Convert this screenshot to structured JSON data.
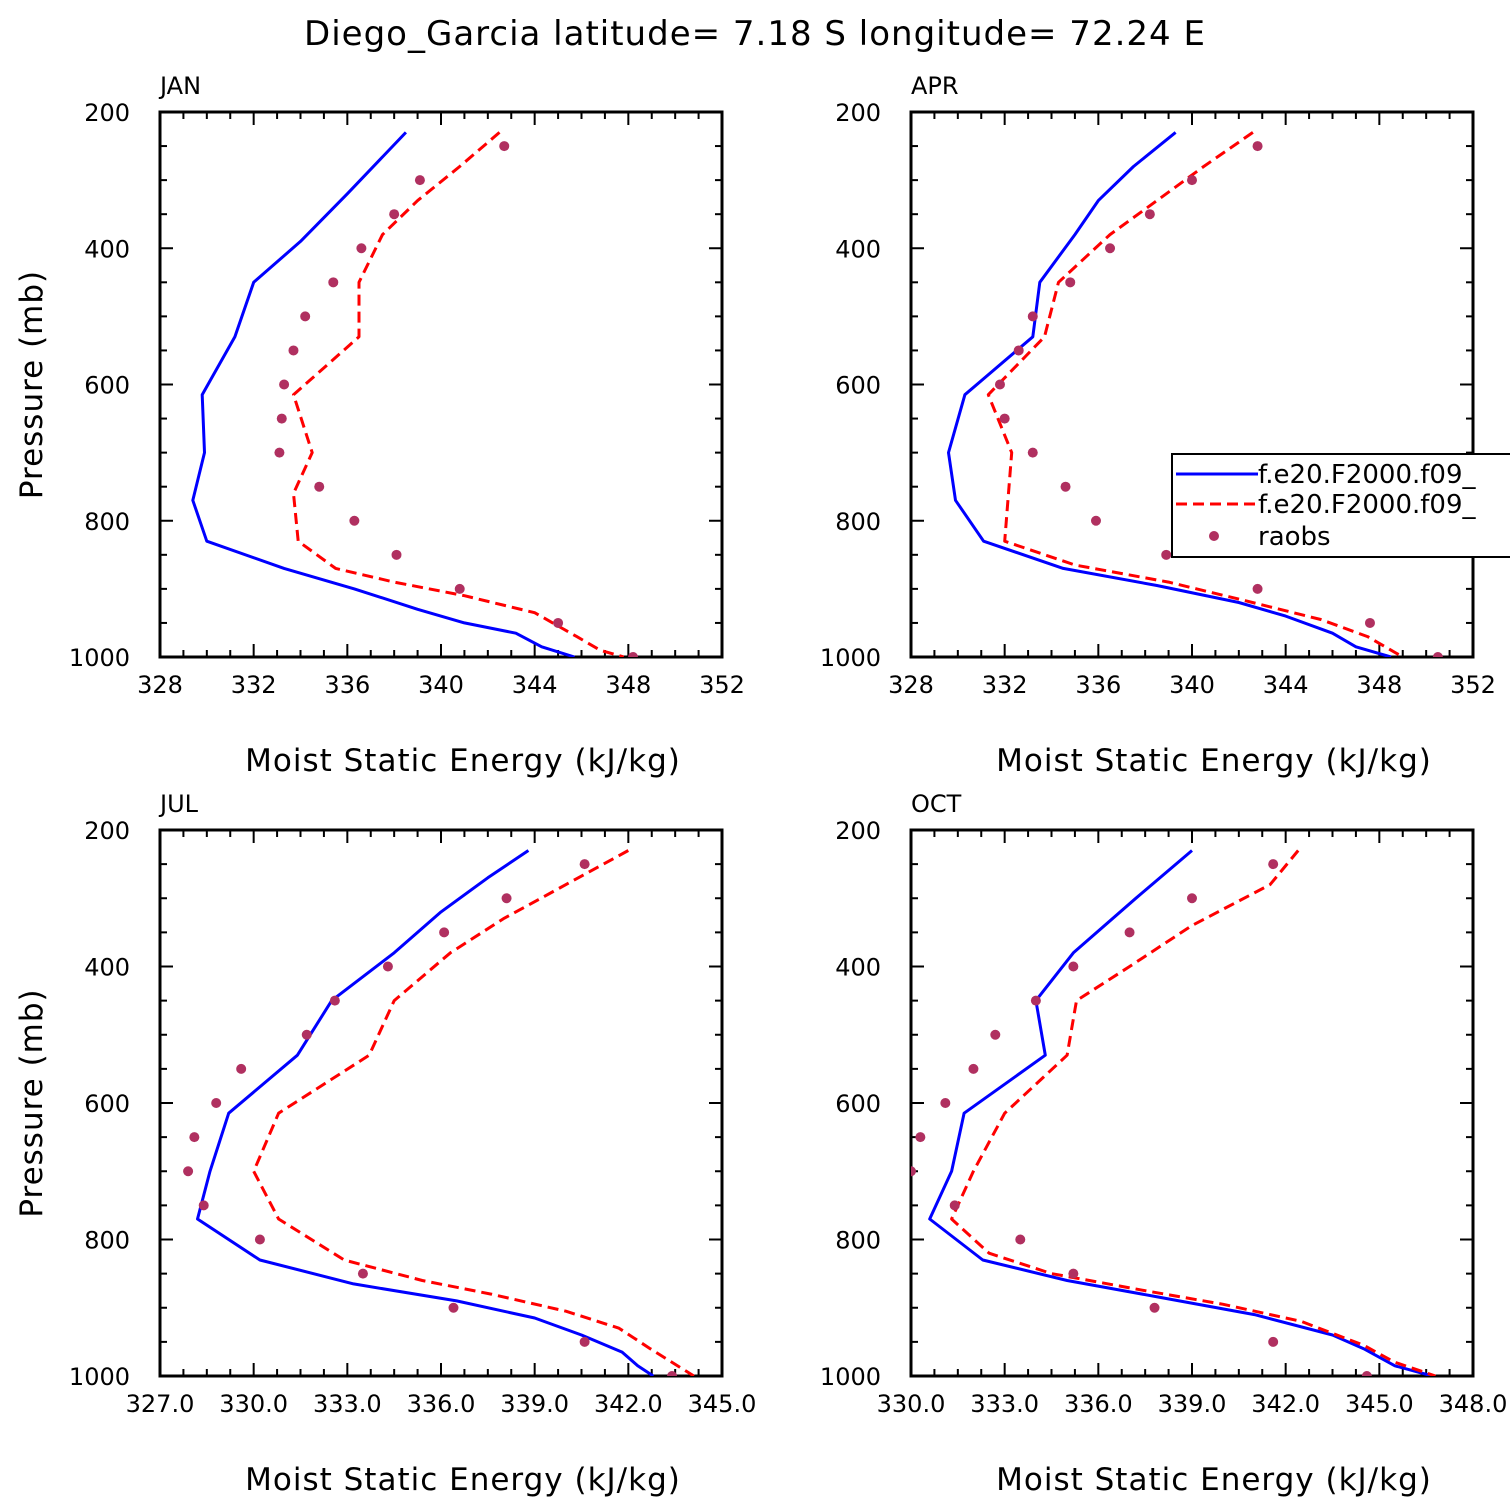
{
  "figure": {
    "title": "Diego_Garcia  latitude= 7.18 S longitude= 72.24 E"
  },
  "legend": {
    "entries": [
      {
        "label": "f.e20.F2000.f09_",
        "style": "solid",
        "color": "#0000ff"
      },
      {
        "label": "f.e20.F2000.f09_",
        "style": "dashed",
        "color": "#ff0000"
      },
      {
        "label": "raobs",
        "style": "dot",
        "color": "#b03060"
      }
    ]
  },
  "chart_data": [
    {
      "type": "line",
      "panel": "JAN",
      "xlabel": "Moist Static Energy (kJ/kg)",
      "ylabel": "Pressure (mb)",
      "xlim": [
        328,
        352
      ],
      "ylim": [
        1000,
        200
      ],
      "xticks": [
        "328",
        "332",
        "336",
        "340",
        "344",
        "348",
        "352"
      ],
      "yticks": [
        "200",
        "400",
        "600",
        "800",
        "1000"
      ],
      "series": [
        {
          "style": "solid",
          "color": "#0000ff",
          "points": [
            [
              338.5,
              230
            ],
            [
              336,
              320
            ],
            [
              334,
              390
            ],
            [
              332,
              450
            ],
            [
              331.2,
              530
            ],
            [
              329.8,
              615
            ],
            [
              329.9,
              700
            ],
            [
              329.4,
              770
            ],
            [
              330,
              830
            ],
            [
              333.3,
              870
            ],
            [
              336.3,
              900
            ],
            [
              339,
              930
            ],
            [
              341,
              950
            ],
            [
              343.2,
              965
            ],
            [
              344.3,
              985
            ],
            [
              345.7,
              1000
            ]
          ]
        },
        {
          "style": "dashed",
          "color": "#ff0000",
          "points": [
            [
              342.5,
              230
            ],
            [
              340.8,
              280
            ],
            [
              339,
              330
            ],
            [
              337.5,
              380
            ],
            [
              336.5,
              450
            ],
            [
              336.5,
              530
            ],
            [
              333.7,
              615
            ],
            [
              334.5,
              700
            ],
            [
              333.7,
              760
            ],
            [
              333.9,
              830
            ],
            [
              335.5,
              870
            ],
            [
              338,
              890
            ],
            [
              341,
              910
            ],
            [
              344,
              935
            ],
            [
              345.8,
              970
            ],
            [
              346.8,
              990
            ],
            [
              347.8,
              1000
            ]
          ]
        },
        {
          "style": "dot",
          "color": "#b03060",
          "points": [
            [
              342.7,
              250
            ],
            [
              339.1,
              300
            ],
            [
              338,
              350
            ],
            [
              336.6,
              400
            ],
            [
              335.4,
              450
            ],
            [
              334.2,
              500
            ],
            [
              333.7,
              550
            ],
            [
              333.3,
              600
            ],
            [
              333.2,
              650
            ],
            [
              333.1,
              700
            ],
            [
              334.8,
              750
            ],
            [
              336.3,
              800
            ],
            [
              338.1,
              850
            ],
            [
              340.8,
              900
            ],
            [
              345,
              950
            ],
            [
              348.2,
              1000
            ]
          ]
        }
      ]
    },
    {
      "type": "line",
      "panel": "APR",
      "xlabel": "Moist Static Energy (kJ/kg)",
      "ylabel": "",
      "xlim": [
        328,
        352
      ],
      "ylim": [
        1000,
        200
      ],
      "xticks": [
        "328",
        "332",
        "336",
        "340",
        "344",
        "348",
        "352"
      ],
      "yticks": [
        "200",
        "400",
        "600",
        "800",
        "1000"
      ],
      "series": [
        {
          "style": "solid",
          "color": "#0000ff",
          "points": [
            [
              339.3,
              230
            ],
            [
              337.5,
              280
            ],
            [
              336,
              330
            ],
            [
              335,
              380
            ],
            [
              333.5,
              450
            ],
            [
              333.2,
              530
            ],
            [
              330.3,
              615
            ],
            [
              329.6,
              700
            ],
            [
              329.9,
              770
            ],
            [
              331.1,
              830
            ],
            [
              334.5,
              870
            ],
            [
              338.5,
              895
            ],
            [
              342,
              920
            ],
            [
              344,
              940
            ],
            [
              346,
              965
            ],
            [
              347,
              985
            ],
            [
              348.5,
              1000
            ]
          ]
        },
        {
          "style": "dashed",
          "color": "#ff0000",
          "points": [
            [
              342.6,
              230
            ],
            [
              340.5,
              280
            ],
            [
              338.5,
              330
            ],
            [
              336.5,
              380
            ],
            [
              334.3,
              450
            ],
            [
              333.7,
              530
            ],
            [
              331.3,
              615
            ],
            [
              332.3,
              700
            ],
            [
              332,
              830
            ],
            [
              335,
              865
            ],
            [
              339,
              890
            ],
            [
              342,
              915
            ],
            [
              345.5,
              945
            ],
            [
              347.5,
              970
            ],
            [
              349,
              1000
            ]
          ]
        },
        {
          "style": "dot",
          "color": "#b03060",
          "points": [
            [
              342.8,
              250
            ],
            [
              340,
              300
            ],
            [
              338.2,
              350
            ],
            [
              336.5,
              400
            ],
            [
              334.8,
              450
            ],
            [
              333.2,
              500
            ],
            [
              332.6,
              550
            ],
            [
              331.8,
              600
            ],
            [
              332,
              650
            ],
            [
              333.2,
              700
            ],
            [
              334.6,
              750
            ],
            [
              335.9,
              800
            ],
            [
              338.9,
              850
            ],
            [
              342.8,
              900
            ],
            [
              347.6,
              950
            ],
            [
              350.5,
              1000
            ]
          ]
        }
      ]
    },
    {
      "type": "line",
      "panel": "JUL",
      "xlabel": "Moist Static Energy (kJ/kg)",
      "ylabel": "Pressure (mb)",
      "xlim": [
        327,
        345
      ],
      "ylim": [
        1000,
        200
      ],
      "xticks": [
        "327.0",
        "330.0",
        "333.0",
        "336.0",
        "339.0",
        "342.0",
        "345.0"
      ],
      "yticks": [
        "200",
        "400",
        "600",
        "800",
        "1000"
      ],
      "series": [
        {
          "style": "solid",
          "color": "#0000ff",
          "points": [
            [
              338.8,
              230
            ],
            [
              337.5,
              270
            ],
            [
              336,
              320
            ],
            [
              334.5,
              380
            ],
            [
              332.5,
              450
            ],
            [
              331.4,
              530
            ],
            [
              329.2,
              615
            ],
            [
              328.6,
              700
            ],
            [
              328.2,
              770
            ],
            [
              330.2,
              830
            ],
            [
              333.2,
              865
            ],
            [
              336.5,
              890
            ],
            [
              339,
              915
            ],
            [
              340.5,
              940
            ],
            [
              341.8,
              965
            ],
            [
              342.3,
              985
            ],
            [
              342.8,
              1000
            ]
          ]
        },
        {
          "style": "dashed",
          "color": "#ff0000",
          "points": [
            [
              342,
              230
            ],
            [
              340,
              280
            ],
            [
              338,
              330
            ],
            [
              336.3,
              380
            ],
            [
              334.5,
              450
            ],
            [
              333.7,
              530
            ],
            [
              330.8,
              615
            ],
            [
              330,
              700
            ],
            [
              330.8,
              770
            ],
            [
              332.9,
              830
            ],
            [
              335.4,
              860
            ],
            [
              337.6,
              880
            ],
            [
              340,
              905
            ],
            [
              341.7,
              930
            ],
            [
              342.7,
              960
            ],
            [
              344.1,
              1000
            ]
          ]
        },
        {
          "style": "dot",
          "color": "#b03060",
          "points": [
            [
              340.6,
              250
            ],
            [
              338.1,
              300
            ],
            [
              336.1,
              350
            ],
            [
              334.3,
              400
            ],
            [
              332.6,
              450
            ],
            [
              331.7,
              500
            ],
            [
              329.6,
              550
            ],
            [
              328.8,
              600
            ],
            [
              328.1,
              650
            ],
            [
              327.9,
              700
            ],
            [
              328.4,
              750
            ],
            [
              330.2,
              800
            ],
            [
              333.5,
              850
            ],
            [
              336.4,
              900
            ],
            [
              340.6,
              950
            ],
            [
              343.4,
              1000
            ]
          ]
        }
      ]
    },
    {
      "type": "line",
      "panel": "OCT",
      "xlabel": "Moist Static Energy (kJ/kg)",
      "ylabel": "",
      "xlim": [
        330,
        348
      ],
      "ylim": [
        1000,
        200
      ],
      "xticks": [
        "330.0",
        "333.0",
        "336.0",
        "339.0",
        "342.0",
        "345.0",
        "348.0"
      ],
      "yticks": [
        "200",
        "400",
        "600",
        "800",
        "1000"
      ],
      "series": [
        {
          "style": "solid",
          "color": "#0000ff",
          "points": [
            [
              339,
              230
            ],
            [
              337.2,
              300
            ],
            [
              335.2,
              380
            ],
            [
              334,
              450
            ],
            [
              334.3,
              530
            ],
            [
              331.7,
              615
            ],
            [
              331.3,
              700
            ],
            [
              330.6,
              770
            ],
            [
              332.3,
              830
            ],
            [
              335,
              860
            ],
            [
              338,
              885
            ],
            [
              341,
              910
            ],
            [
              343.5,
              940
            ],
            [
              344.5,
              960
            ],
            [
              345.5,
              985
            ],
            [
              346.7,
              1000
            ]
          ]
        },
        {
          "style": "dashed",
          "color": "#ff0000",
          "points": [
            [
              342.4,
              230
            ],
            [
              341.5,
              280
            ],
            [
              339,
              340
            ],
            [
              337,
              400
            ],
            [
              335.3,
              450
            ],
            [
              335,
              530
            ],
            [
              333,
              615
            ],
            [
              332,
              700
            ],
            [
              331.3,
              770
            ],
            [
              332.5,
              820
            ],
            [
              334.5,
              850
            ],
            [
              337.5,
              875
            ],
            [
              340,
              895
            ],
            [
              342.5,
              920
            ],
            [
              344.5,
              955
            ],
            [
              345.5,
              980
            ],
            [
              346.8,
              1000
            ]
          ]
        },
        {
          "style": "dot",
          "color": "#b03060",
          "points": [
            [
              341.6,
              250
            ],
            [
              339,
              300
            ],
            [
              337,
              350
            ],
            [
              335.2,
              400
            ],
            [
              334,
              450
            ],
            [
              332.7,
              500
            ],
            [
              332,
              550
            ],
            [
              331.1,
              600
            ],
            [
              330.3,
              650
            ],
            [
              330,
              700
            ],
            [
              331.4,
              750
            ],
            [
              333.5,
              800
            ],
            [
              335.2,
              850
            ],
            [
              337.8,
              900
            ],
            [
              341.6,
              950
            ],
            [
              344.6,
              1000
            ]
          ]
        }
      ]
    }
  ]
}
